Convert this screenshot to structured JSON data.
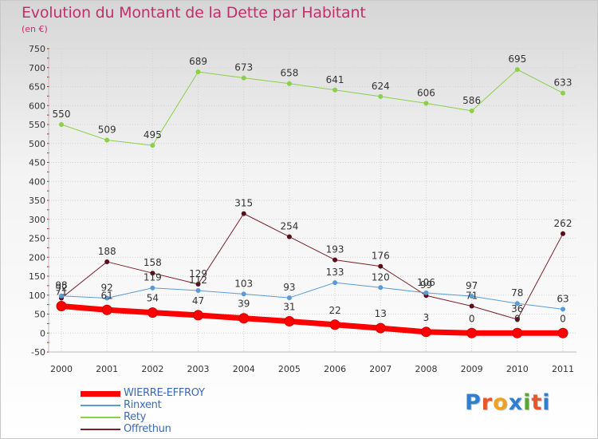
{
  "title": "Evolution du Montant de la Dette par Habitant",
  "subtitle": "(en €)",
  "brand": {
    "text": "Proxiti",
    "colors": [
      "#2e7fd0",
      "#e8552a",
      "#f0a21e",
      "#2e7fd0",
      "#57a92d",
      "#e8552a",
      "#2e7fd0"
    ]
  },
  "chart_data": {
    "type": "line",
    "x": [
      "2000",
      "2001",
      "2002",
      "2003",
      "2004",
      "2005",
      "2006",
      "2007",
      "2008",
      "2009",
      "2010",
      "2011"
    ],
    "ylim": [
      -50,
      750
    ],
    "yticks": [
      -50,
      0,
      50,
      100,
      150,
      200,
      250,
      300,
      350,
      400,
      450,
      500,
      550,
      600,
      650,
      700,
      750
    ],
    "grid": true,
    "legend_position": "bottom-left",
    "series": [
      {
        "name": "WIERRE-EFFROY",
        "color": "#ff0000",
        "values": [
          71,
          61,
          54,
          47,
          39,
          31,
          22,
          13,
          3,
          0,
          0,
          0
        ],
        "labels": [
          "71",
          "61",
          "54",
          "47",
          "39",
          "31",
          "22",
          "13",
          "3",
          "0",
          "0",
          "0"
        ]
      },
      {
        "name": "Rinxent",
        "color": "#5b9bd5",
        "values": [
          98,
          92,
          119,
          112,
          103,
          93,
          133,
          120,
          106,
          97,
          78,
          63
        ],
        "labels": [
          "98",
          "92",
          "119",
          "112",
          "103",
          "93",
          "133",
          "120",
          "106",
          "97",
          "78",
          "63"
        ]
      },
      {
        "name": "Rety",
        "color": "#8ad04a",
        "values": [
          550,
          509,
          495,
          689,
          673,
          658,
          641,
          624,
          606,
          586,
          695,
          633
        ],
        "labels": [
          "550",
          "509",
          "495",
          "689",
          "673",
          "658",
          "641",
          "624",
          "606",
          "586",
          "695",
          "633"
        ]
      },
      {
        "name": "Offrethun",
        "color": "#7a1f2a",
        "values": [
          92,
          188,
          158,
          129,
          315,
          254,
          193,
          176,
          99,
          71,
          36,
          262
        ],
        "labels": [
          "92",
          "188",
          "158",
          "129",
          "315",
          "254",
          "193",
          "176",
          "99",
          "71",
          "36",
          "262"
        ]
      }
    ]
  }
}
